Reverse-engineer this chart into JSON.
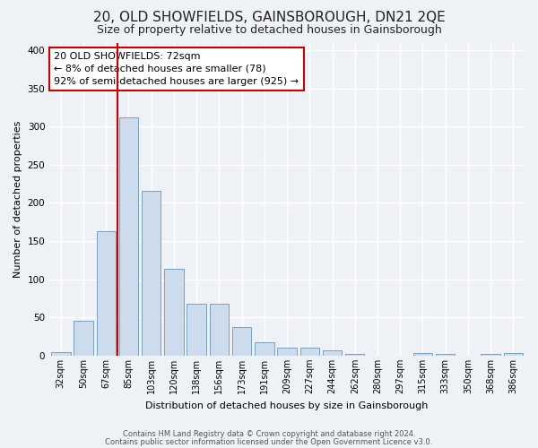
{
  "title": "20, OLD SHOWFIELDS, GAINSBOROUGH, DN21 2QE",
  "subtitle": "Size of property relative to detached houses in Gainsborough",
  "xlabel": "Distribution of detached houses by size in Gainsborough",
  "ylabel": "Number of detached properties",
  "categories": [
    "32sqm",
    "50sqm",
    "67sqm",
    "85sqm",
    "103sqm",
    "120sqm",
    "138sqm",
    "156sqm",
    "173sqm",
    "191sqm",
    "209sqm",
    "227sqm",
    "244sqm",
    "262sqm",
    "280sqm",
    "297sqm",
    "315sqm",
    "333sqm",
    "350sqm",
    "368sqm",
    "386sqm"
  ],
  "bar_heights": [
    5,
    46,
    163,
    312,
    216,
    114,
    68,
    68,
    38,
    18,
    11,
    11,
    7,
    2,
    0,
    0,
    3,
    2,
    0,
    2,
    3
  ],
  "bar_color": "#cddcec",
  "bar_edge_color": "#7a9fc0",
  "vline_color": "#cc0000",
  "vline_x": 2.5,
  "annotation_title": "20 OLD SHOWFIELDS: 72sqm",
  "annotation_line1": "← 8% of detached houses are smaller (78)",
  "annotation_line2": "92% of semi-detached houses are larger (925) →",
  "annotation_box_color": "#ffffff",
  "annotation_box_edge": "#cc0000",
  "ylim": [
    0,
    410
  ],
  "yticks": [
    0,
    50,
    100,
    150,
    200,
    250,
    300,
    350,
    400
  ],
  "footer1": "Contains HM Land Registry data © Crown copyright and database right 2024.",
  "footer2": "Contains public sector information licensed under the Open Government Licence v3.0.",
  "bg_color": "#eef2f7",
  "grid_color": "#ffffff",
  "title_fontsize": 11,
  "subtitle_fontsize": 9,
  "annotation_fontsize": 8,
  "axis_label_fontsize": 8,
  "tick_fontsize": 7,
  "footer_fontsize": 6
}
